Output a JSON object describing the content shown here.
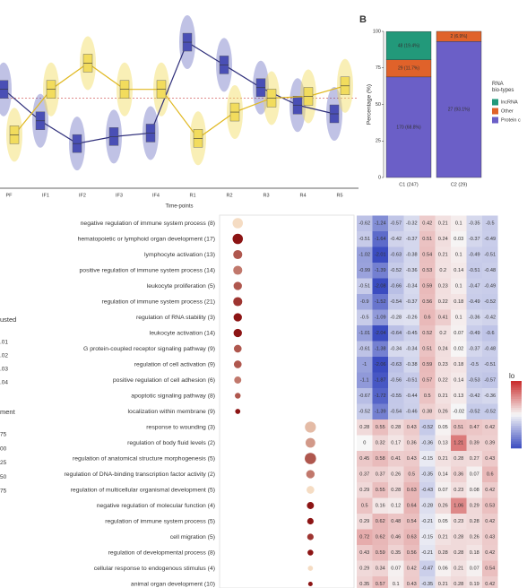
{
  "chart_data": [
    {
      "type": "line",
      "x_label": "Time-points",
      "categories": [
        "PF",
        "IF1",
        "IF2",
        "IF3",
        "IF4",
        "R1",
        "R2",
        "R3",
        "R4",
        "R5"
      ],
      "ylim": [
        0,
        10
      ],
      "hline": 4.9,
      "series": [
        {
          "color": "#4a4fb5",
          "values": [
            5.4,
            3.6,
            2.3,
            2.7,
            2.9,
            8.1,
            6.8,
            5.5,
            4.5,
            4.0
          ]
        },
        {
          "color": "#f2dc5d",
          "values": [
            2.8,
            5.4,
            6.9,
            5.4,
            5.4,
            2.6,
            4.1,
            4.9,
            5.0,
            5.6
          ]
        }
      ]
    },
    {
      "type": "stacked-bar",
      "panel_label": "B",
      "y_label": "Percentage (%)",
      "categories": [
        "C1 (247)",
        "C2 (29)"
      ],
      "ylim": [
        0,
        100
      ],
      "yticks": [
        0,
        25,
        50,
        75,
        100
      ],
      "legend_title": "RNA bio-types",
      "series": [
        {
          "name": "Protein c",
          "color": "#6b5fc7",
          "values": [
            68.8,
            93.1
          ],
          "value_labels": [
            "170 (68.8%)",
            "27 (93.1%)"
          ]
        },
        {
          "name": "Other",
          "color": "#e0622a",
          "values": [
            11.7,
            6.9
          ],
          "value_labels": [
            "29 (11.7%)",
            "2 (6.9%)"
          ]
        },
        {
          "name": "lncRNA",
          "color": "#22997a",
          "values": [
            19.4,
            null
          ],
          "value_labels": [
            "48 (19.4%)",
            null
          ]
        }
      ]
    },
    {
      "type": "dot",
      "categories": [
        "negative regulation of immune system process (8)",
        "hematopoietic or lymphoid organ development (17)",
        "lymphocyte activation (13)",
        "positive regulation of immune system process (14)",
        "leukocyte proliferation (5)",
        "regulation of immune system process (21)",
        "regulation of RNA stability (3)",
        "leukocyte activation (14)",
        "G protein-coupled receptor signaling pathway (9)",
        "regulation of cell activation (9)",
        "positive regulation of cell adhesion (6)",
        "apoptotic signaling pathway (8)",
        "localization within membrane (9)",
        "response to wounding (3)",
        "regulation of body fluid levels (2)",
        "regulation of anatomical structure morphogenesis (5)",
        "regulation of DNA-binding transcription factor activity (2)",
        "regulation of multicellular organismal development (5)",
        "negative regulation of molecular function (4)",
        "regulation of immune system process (5)",
        "cell migration (5)",
        "regulation of developmental process (8)",
        "cellular response to endogenous stimulus (4)",
        "animal organ development (10)"
      ],
      "xlim": [
        0.75,
        2.6
      ],
      "x": [
        1,
        1,
        1,
        1,
        1,
        1,
        1,
        1,
        1,
        1,
        1,
        1,
        1,
        2,
        2,
        2,
        2,
        2,
        2,
        2,
        2,
        2,
        2,
        2
      ],
      "values": [
        0.04,
        0.01,
        0.02,
        0.025,
        0.02,
        0.015,
        0.01,
        0.01,
        0.02,
        0.02,
        0.025,
        0.02,
        0.01,
        0.035,
        0.03,
        0.02,
        0.025,
        0.04,
        0.01,
        0.01,
        0.015,
        0.01,
        0.04,
        0.01
      ],
      "sizes": [
        1.6,
        1.6,
        1.4,
        1.4,
        1.3,
        1.4,
        1.3,
        1.3,
        1.2,
        1.2,
        1.1,
        0.9,
        0.8,
        1.7,
        1.5,
        1.75,
        1.3,
        1.2,
        1.1,
        1.0,
        1.0,
        0.9,
        0.8,
        0.7
      ],
      "color_legend": {
        "title": "usted",
        "labels": [
          ".01",
          ".02",
          ".03",
          ".04"
        ]
      },
      "size_legend": {
        "title": "ment",
        "labels": [
          "75",
          "00",
          "25",
          "50",
          "75"
        ]
      }
    },
    {
      "type": "heatmap",
      "legend_title": "lo",
      "zlim": [
        -2,
        2
      ],
      "rows": [
        [
          -0.62,
          -1.24,
          -0.57,
          -0.32,
          0.42,
          0.21,
          0.1,
          -0.35,
          -0.5
        ],
        [
          -0.51,
          -1.64,
          -0.42,
          -0.37,
          0.51,
          0.24,
          0.03,
          -0.37,
          -0.49
        ],
        [
          -1.02,
          -2.01,
          -0.63,
          -0.38,
          0.54,
          0.21,
          0.1,
          -0.49,
          -0.51
        ],
        [
          -0.99,
          -1.39,
          -0.52,
          -0.36,
          0.53,
          0.2,
          0.14,
          -0.51,
          -0.48
        ],
        [
          -0.51,
          -2.08,
          -0.66,
          -0.34,
          0.59,
          0.23,
          0.1,
          -0.47,
          -0.49
        ],
        [
          -0.9,
          -1.52,
          -0.54,
          -0.37,
          0.56,
          0.22,
          0.18,
          -0.49,
          -0.52
        ],
        [
          -0.5,
          -1.09,
          -0.28,
          -0.26,
          0.6,
          0.41,
          0.1,
          -0.36,
          -0.42
        ],
        [
          -1.01,
          -2.04,
          -0.64,
          -0.45,
          0.52,
          0.2,
          0.07,
          -0.49,
          -0.6
        ],
        [
          -0.61,
          -1.38,
          -0.34,
          -0.34,
          0.51,
          0.24,
          0.02,
          -0.37,
          -0.48
        ],
        [
          -1,
          -2.06,
          -0.63,
          -0.38,
          0.59,
          0.23,
          0.18,
          -0.5,
          -0.51
        ],
        [
          -1.1,
          -1.87,
          -0.56,
          -0.51,
          0.57,
          0.22,
          0.14,
          -0.53,
          -0.57
        ],
        [
          -0.67,
          -1.72,
          -0.55,
          -0.44,
          0.5,
          0.21,
          0.13,
          -0.42,
          -0.36
        ],
        [
          -0.52,
          -1.39,
          -0.54,
          -0.46,
          0.38,
          0.26,
          -0.02,
          -0.52,
          -0.52
        ],
        [
          0.28,
          0.55,
          0.28,
          0.43,
          -0.52,
          0.05,
          0.51,
          0.47,
          0.42
        ],
        [
          0,
          0.32,
          0.17,
          0.36,
          -0.36,
          0.13,
          1.21,
          0.39,
          0.39
        ],
        [
          0.45,
          0.58,
          0.41,
          0.43,
          -0.15,
          0.21,
          0.28,
          0.27,
          0.43
        ],
        [
          0.37,
          0.37,
          0.26,
          0.5,
          -0.35,
          0.14,
          0.36,
          0.07,
          0.6
        ],
        [
          0.29,
          0.55,
          0.28,
          0.63,
          -0.43,
          0.07,
          0.23,
          0.08,
          0.42
        ],
        [
          0.5,
          0.16,
          0.12,
          0.64,
          -0.28,
          0.26,
          1.06,
          0.29,
          0.53
        ],
        [
          0.29,
          0.62,
          0.48,
          0.54,
          -0.21,
          0.05,
          0.23,
          0.28,
          0.42
        ],
        [
          0.72,
          0.62,
          0.46,
          0.63,
          -0.15,
          0.21,
          0.28,
          0.26,
          0.43
        ],
        [
          0.43,
          0.59,
          0.35,
          0.56,
          -0.21,
          0.28,
          0.28,
          0.18,
          0.42
        ],
        [
          0.29,
          0.34,
          0.07,
          0.42,
          -0.47,
          0.06,
          0.21,
          0.07,
          0.54
        ],
        [
          0.35,
          0.57,
          0.1,
          0.43,
          -0.35,
          0.21,
          0.28,
          0.19,
          0.42
        ]
      ]
    }
  ]
}
